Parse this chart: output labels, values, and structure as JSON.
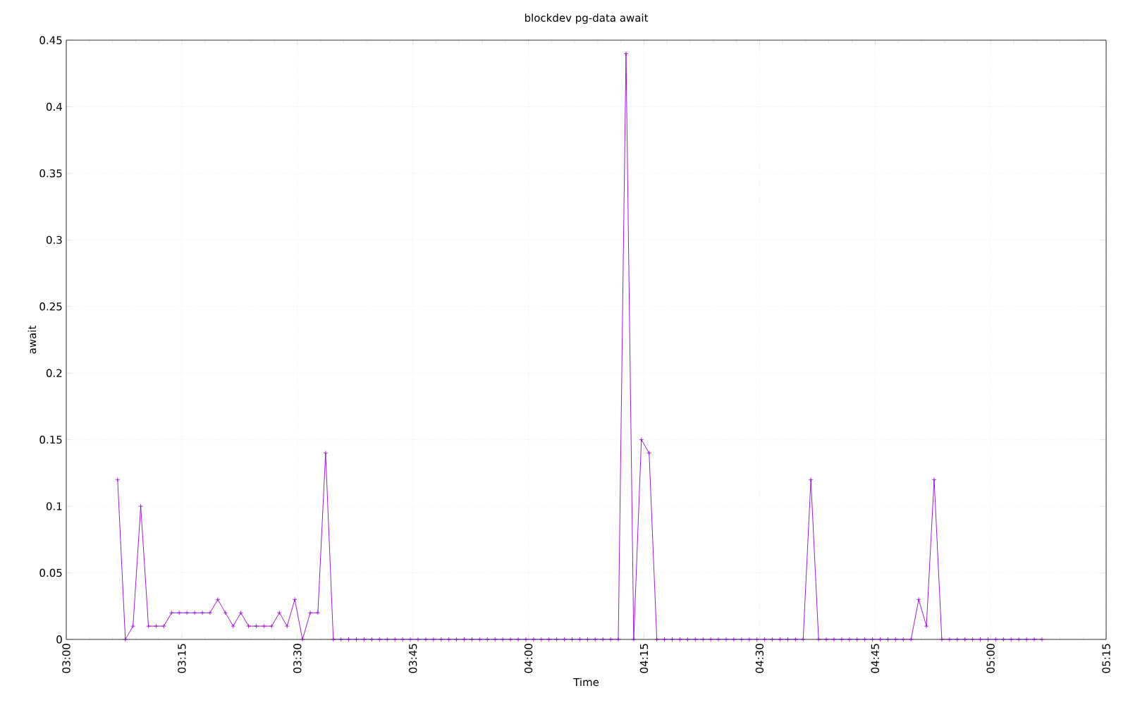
{
  "chart_data": {
    "type": "line",
    "title": "blockdev pg-data await",
    "xlabel": "Time",
    "ylabel": "await",
    "x": [
      3.1111,
      3.1278,
      3.1444,
      3.1611,
      3.1778,
      3.1944,
      3.2111,
      3.2278,
      3.2444,
      3.2611,
      3.2778,
      3.2944,
      3.3111,
      3.3278,
      3.3444,
      3.3611,
      3.3778,
      3.3944,
      3.4111,
      3.4278,
      3.4444,
      3.4611,
      3.4778,
      3.4944,
      3.5111,
      3.5278,
      3.5444,
      3.5611,
      3.5778,
      3.5944,
      3.6111,
      3.6278,
      3.6444,
      3.6611,
      3.6778,
      3.6944,
      3.7111,
      3.7278,
      3.7444,
      3.7611,
      3.7778,
      3.7944,
      3.8111,
      3.8278,
      3.8444,
      3.8611,
      3.8778,
      3.8944,
      3.9111,
      3.9278,
      3.9444,
      3.9611,
      3.9778,
      3.9944,
      4.0111,
      4.0278,
      4.0444,
      4.0611,
      4.0778,
      4.0944,
      4.1111,
      4.1278,
      4.1444,
      4.1611,
      4.1778,
      4.1944,
      4.2111,
      4.2278,
      4.2444,
      4.2611,
      4.2778,
      4.2944,
      4.3111,
      4.3278,
      4.3444,
      4.3611,
      4.3778,
      4.3944,
      4.4111,
      4.4278,
      4.4444,
      4.4611,
      4.4778,
      4.4944,
      4.5111,
      4.5278,
      4.5444,
      4.5611,
      4.5778,
      4.5944,
      4.6111,
      4.6278,
      4.6444,
      4.6611,
      4.6778,
      4.6944,
      4.7111,
      4.7278,
      4.7444,
      4.7611,
      4.7778,
      4.7944,
      4.8111,
      4.8278,
      4.8444,
      4.8611,
      4.8778,
      4.8944,
      4.9111,
      4.9278,
      4.9444,
      4.9611,
      4.9778,
      4.9944,
      5.0111,
      5.0278,
      5.0444,
      5.0611,
      5.0778,
      5.0944,
      5.1111
    ],
    "series": [
      {
        "color": "#9400d3",
        "values": [
          0.12,
          0,
          0.01,
          0.1,
          0.01,
          0.01,
          0.01,
          0.02,
          0.02,
          0.02,
          0.02,
          0.02,
          0.02,
          0.03,
          0.02,
          0.01,
          0.02,
          0.01,
          0.01,
          0.01,
          0.01,
          0.02,
          0.01,
          0.03,
          0,
          0.02,
          0.02,
          0.14,
          0,
          0,
          0,
          0,
          0,
          0,
          0,
          0,
          0,
          0,
          0,
          0,
          0,
          0,
          0,
          0,
          0,
          0,
          0,
          0,
          0,
          0,
          0,
          0,
          0,
          0,
          0,
          0,
          0,
          0,
          0,
          0,
          0,
          0,
          0,
          0,
          0,
          0,
          0.44,
          0,
          0.15,
          0.14,
          0,
          0,
          0,
          0,
          0,
          0,
          0,
          0,
          0,
          0,
          0,
          0,
          0,
          0,
          0,
          0,
          0,
          0,
          0,
          0,
          0.12,
          0,
          0,
          0,
          0,
          0,
          0,
          0,
          0,
          0,
          0,
          0,
          0,
          0,
          0.03,
          0.01,
          0.12,
          0,
          0,
          0,
          0,
          0,
          0,
          0,
          0,
          0,
          0,
          0,
          0,
          0,
          0
        ]
      }
    ],
    "xlim": [
      3,
      5.25
    ],
    "xticks": [
      {
        "value": 3,
        "label": "03:00"
      },
      {
        "value": 3.25,
        "label": "03:15"
      },
      {
        "value": 3.5,
        "label": "03:30"
      },
      {
        "value": 3.75,
        "label": "03:45"
      },
      {
        "value": 4,
        "label": "04:00"
      },
      {
        "value": 4.25,
        "label": "04:15"
      },
      {
        "value": 4.5,
        "label": "04:30"
      },
      {
        "value": 4.75,
        "label": "04:45"
      },
      {
        "value": 5,
        "label": "05:00"
      },
      {
        "value": 5.25,
        "label": "05:15"
      }
    ],
    "ylim": [
      0,
      0.45
    ],
    "yticks": [
      0,
      0.05,
      0.1,
      0.15,
      0.2,
      0.25,
      0.3,
      0.35,
      0.4,
      0.45
    ],
    "grid": true,
    "marker": "cross",
    "line_style": "solid"
  }
}
